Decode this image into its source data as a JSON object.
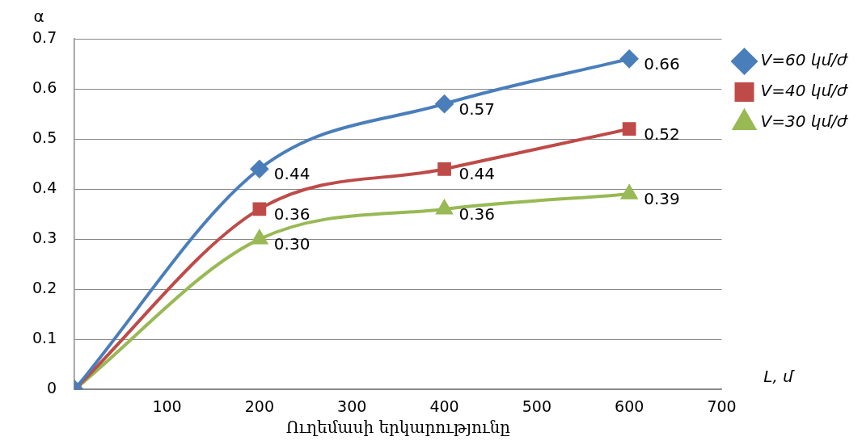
{
  "chart_data": {
    "type": "line",
    "xlabel": "Ուղեմասի երկարությունը",
    "ylabel": "α",
    "annotations": [
      "L, մ"
    ],
    "x": [
      0,
      200,
      400,
      600
    ],
    "xlim": [
      0,
      700
    ],
    "xticks": [
      100,
      200,
      300,
      400,
      500,
      600,
      700
    ],
    "ylim": [
      0,
      0.7
    ],
    "yticks": [
      0,
      0.1,
      0.2,
      0.3,
      0.4,
      0.5,
      0.6,
      0.7
    ],
    "grid": "y",
    "legend": "right",
    "series": [
      {
        "name": "V=60 կմ/ժ",
        "color": "#4a7ebb",
        "marker": "diamond",
        "values": [
          0,
          0.44,
          0.57,
          0.66
        ],
        "value_labels": [
          null,
          "0.44",
          "0.57",
          "0.66"
        ]
      },
      {
        "name": "V=40 կմ/ժ",
        "color": "#be4b48",
        "marker": "square",
        "values": [
          0,
          0.36,
          0.44,
          0.52
        ],
        "value_labels": [
          null,
          "0.36",
          "0.44",
          "0.52"
        ]
      },
      {
        "name": "V=30 կմ/ժ",
        "color": "#98b954",
        "marker": "triangle",
        "values": [
          0,
          0.3,
          0.36,
          0.39
        ],
        "value_labels": [
          null,
          "0.30",
          "0.36",
          "0.39"
        ]
      }
    ]
  }
}
